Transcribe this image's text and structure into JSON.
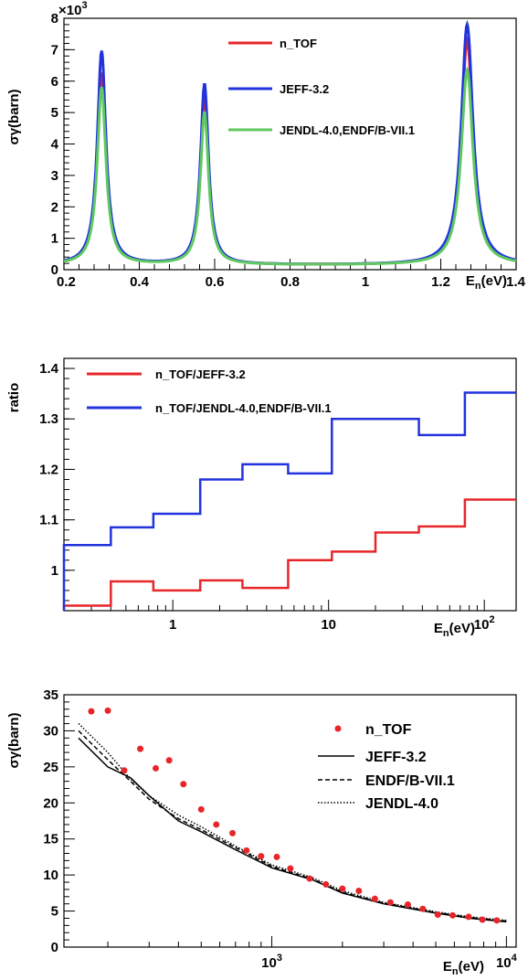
{
  "chart_data": [
    {
      "type": "line",
      "xlabel": "E_n(eV)",
      "ylabel": "σ_γ(barn)",
      "y_multiplier": "×10^3",
      "xlim": [
        0.2,
        1.4
      ],
      "ylim": [
        0,
        8000
      ],
      "x_ticks": [
        "0.2",
        "0.4",
        "0.6",
        "0.8",
        "1",
        "1.2",
        "1.4"
      ],
      "y_ticks": [
        "0",
        "1",
        "2",
        "3",
        "4",
        "5",
        "6",
        "7",
        "8"
      ],
      "legend_position": "top-center",
      "resonances": [
        {
          "energy": 0.3,
          "width": 0.028
        },
        {
          "energy": 0.573,
          "width": 0.026
        },
        {
          "energy": 1.27,
          "width": 0.038
        }
      ],
      "background": 150,
      "series": [
        {
          "name": "n_TOF",
          "color": "#e8262a",
          "peaks": [
            6250,
            5500,
            7300
          ]
        },
        {
          "name": "JEFF-3.2",
          "color": "#2233dd",
          "peaks": [
            6950,
            5900,
            7800
          ]
        },
        {
          "name": "JENDL-4.0,ENDF/B-VII.1",
          "color": "#5fc95f",
          "peaks": [
            5800,
            5000,
            6350
          ]
        }
      ]
    },
    {
      "type": "line",
      "step": true,
      "xlabel": "E_n(eV)",
      "ylabel": "ratio",
      "x_scale": "log",
      "xlim": [
        0.2,
        160
      ],
      "ylim": [
        0.92,
        1.42
      ],
      "x_ticks": [
        {
          "value": 1,
          "label": "1"
        },
        {
          "value": 10,
          "label": "10"
        },
        {
          "value": 100,
          "label": "10^2"
        }
      ],
      "y_ticks": [
        "1",
        "1.1",
        "1.2",
        "1.3",
        "1.4"
      ],
      "legend_position": "top-left",
      "bin_edges": [
        0.2,
        0.4,
        0.75,
        1.5,
        2.8,
        5.5,
        10.5,
        20,
        38,
        75,
        160
      ],
      "series": [
        {
          "name": "n_TOF/JEFF-3.2",
          "color": "#e8262a",
          "values": [
            0.93,
            0.978,
            0.96,
            0.98,
            0.965,
            1.02,
            1.037,
            1.075,
            1.087,
            1.14
          ]
        },
        {
          "name": "n_TOF/JENDL-4.0,ENDF/B-VII.1",
          "color": "#2233dd",
          "values": [
            1.05,
            1.085,
            1.112,
            1.18,
            1.21,
            1.192,
            1.3,
            1.3,
            1.268,
            1.352
          ]
        }
      ]
    },
    {
      "type": "scatter",
      "xlabel": "E_n(eV)",
      "ylabel": "σ_γ(barn)",
      "x_scale": "log",
      "xlim": [
        130,
        11000
      ],
      "ylim": [
        0,
        35
      ],
      "x_ticks": [
        {
          "value": 1000,
          "label": "10^3"
        },
        {
          "value": 10000,
          "label": "10^4"
        }
      ],
      "y_ticks": [
        "0",
        "5",
        "10",
        "15",
        "20",
        "25",
        "30",
        "35"
      ],
      "legend_position": "top-right",
      "points": {
        "name": "n_TOF",
        "color": "#e8262a",
        "x": [
          170,
          200,
          235,
          275,
          320,
          365,
          420,
          500,
          580,
          680,
          780,
          900,
          1050,
          1200,
          1450,
          1700,
          2000,
          2350,
          2750,
          3200,
          3800,
          4400,
          5100,
          5900,
          6900,
          7900,
          9100
        ],
        "y": [
          32.7,
          32.8,
          24.5,
          27.5,
          24.8,
          25.9,
          22.6,
          19.1,
          17.0,
          15.8,
          13.4,
          12.6,
          12.5,
          10.9,
          9.5,
          8.7,
          8.1,
          7.8,
          6.7,
          6.2,
          5.9,
          5.3,
          4.5,
          4.4,
          4.2,
          3.8,
          3.7
        ]
      },
      "series": [
        {
          "name": "JEFF-3.2",
          "dash": "solid",
          "x": [
            150,
            200,
            250,
            300,
            400,
            500,
            700,
            1000,
            1500,
            2000,
            3000,
            5000,
            7000,
            10000
          ],
          "y": [
            29.0,
            25.0,
            23.5,
            21.0,
            17.5,
            16.0,
            13.5,
            11.0,
            9.3,
            7.5,
            6.0,
            4.7,
            4.0,
            3.5
          ]
        },
        {
          "name": "ENDF/B-VII.1",
          "dash": "dashed",
          "x": [
            150,
            200,
            250,
            300,
            400,
            500,
            700,
            1000,
            1500,
            2000,
            3000,
            5000,
            7000,
            10000
          ],
          "y": [
            30.0,
            26.0,
            23.0,
            20.5,
            17.8,
            16.3,
            13.8,
            11.2,
            9.4,
            7.6,
            6.1,
            4.8,
            4.1,
            3.6
          ]
        },
        {
          "name": "JENDL-4.0",
          "dash": "dotted",
          "x": [
            150,
            200,
            250,
            300,
            400,
            500,
            700,
            1000,
            1500,
            2000,
            3000,
            5000,
            7000,
            10000
          ],
          "y": [
            31.0,
            27.0,
            23.3,
            21.0,
            18.3,
            16.7,
            14.0,
            11.4,
            9.6,
            7.8,
            6.2,
            4.9,
            4.2,
            3.7
          ]
        }
      ]
    }
  ]
}
